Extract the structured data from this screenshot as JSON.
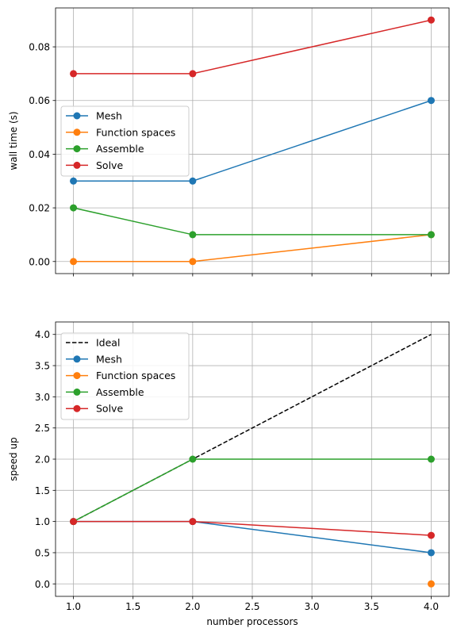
{
  "chart_data": [
    {
      "type": "line",
      "xlabel": "",
      "ylabel": "wall time (s)",
      "x": [
        1,
        2,
        4
      ],
      "xlim": [
        0.85,
        4.15
      ],
      "ylim": [
        -0.0045,
        0.0945
      ],
      "xticks": [
        1.0,
        1.5,
        2.0,
        2.5,
        3.0,
        3.5,
        4.0
      ],
      "yticks": [
        0.0,
        0.02,
        0.04,
        0.06,
        0.08
      ],
      "ytick_labels": [
        "0.00",
        "0.02",
        "0.04",
        "0.06",
        "0.08"
      ],
      "show_xtick_labels": false,
      "grid": true,
      "legend_placement": "center-left",
      "series": [
        {
          "name": "Mesh",
          "values": [
            0.03,
            0.03,
            0.06
          ],
          "color": "#1f77b4",
          "marker": "circle",
          "dashed": false
        },
        {
          "name": "Function spaces",
          "values": [
            0.0,
            0.0,
            0.01
          ],
          "color": "#ff7f0e",
          "marker": "circle",
          "dashed": false
        },
        {
          "name": "Assemble",
          "values": [
            0.02,
            0.01,
            0.01
          ],
          "color": "#2ca02c",
          "marker": "circle",
          "dashed": false
        },
        {
          "name": "Solve",
          "values": [
            0.07,
            0.07,
            0.09
          ],
          "color": "#d62728",
          "marker": "circle",
          "dashed": false
        }
      ]
    },
    {
      "type": "line",
      "xlabel": "number processors",
      "ylabel": "speed up",
      "x": [
        1,
        2,
        4
      ],
      "xlim": [
        0.85,
        4.15
      ],
      "ylim": [
        -0.2,
        4.2
      ],
      "xticks": [
        1.0,
        1.5,
        2.0,
        2.5,
        3.0,
        3.5,
        4.0
      ],
      "xtick_labels": [
        "1.0",
        "1.5",
        "2.0",
        "2.5",
        "3.0",
        "3.5",
        "4.0"
      ],
      "yticks": [
        0.0,
        0.5,
        1.0,
        1.5,
        2.0,
        2.5,
        3.0,
        3.5,
        4.0
      ],
      "ytick_labels": [
        "0.0",
        "0.5",
        "1.0",
        "1.5",
        "2.0",
        "2.5",
        "3.0",
        "3.5",
        "4.0"
      ],
      "show_xtick_labels": true,
      "grid": true,
      "legend_placement": "top-left",
      "series": [
        {
          "name": "Ideal",
          "values": [
            1,
            2,
            4
          ],
          "color": "#000000",
          "marker": "none",
          "dashed": true
        },
        {
          "name": "Mesh",
          "values": [
            1.0,
            1.0,
            0.5
          ],
          "color": "#1f77b4",
          "marker": "circle",
          "dashed": false
        },
        {
          "name": "Function spaces",
          "values": [
            null,
            null,
            0.0
          ],
          "color": "#ff7f0e",
          "marker": "circle",
          "dashed": false
        },
        {
          "name": "Assemble",
          "values": [
            1.0,
            2.0,
            2.0
          ],
          "color": "#2ca02c",
          "marker": "circle",
          "dashed": false
        },
        {
          "name": "Solve",
          "values": [
            1.0,
            1.0,
            0.778
          ],
          "color": "#d62728",
          "marker": "circle",
          "dashed": false
        }
      ]
    }
  ]
}
